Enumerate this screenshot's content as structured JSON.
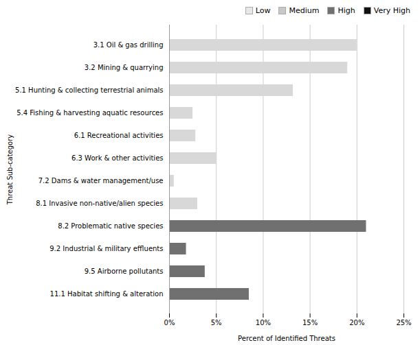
{
  "chart_data": {
    "type": "bar",
    "orientation": "horizontal",
    "categories": [
      "3.1 Oil & gas drilling",
      "3.2 Mining & quarrying",
      "5.1 Hunting & collecting terrestrial animals",
      "5.4 Fishing & harvesting aquatic resources",
      "6.1 Recreational activities",
      "6.3 Work & other activities",
      "7.2 Dams & water management/use",
      "8.1 Invasive non-native/alien species",
      "8.2 Problematic native species",
      "9.2 Industrial & military effluents",
      "9.5 Airborne pollutants",
      "11.1 Habitat shifting & alteration"
    ],
    "values": [
      20.0,
      19.0,
      13.2,
      2.5,
      2.8,
      5.0,
      0.5,
      3.0,
      21.0,
      1.8,
      3.8,
      8.5
    ],
    "colors": [
      "#d8d8d8",
      "#d8d8d8",
      "#d8d8d8",
      "#d8d8d8",
      "#d8d8d8",
      "#d8d8d8",
      "#d8d8d8",
      "#d8d8d8",
      "#707070",
      "#707070",
      "#707070",
      "#707070"
    ],
    "xlabel": "Percent of Identified Threats",
    "ylabel": "Threat Sub-category",
    "xlim": [
      0,
      25
    ],
    "xticks": [
      {
        "value": 0,
        "label": "0%"
      },
      {
        "value": 5,
        "label": "5%"
      },
      {
        "value": 10,
        "label": "10%"
      },
      {
        "value": 15,
        "label": "15%"
      },
      {
        "value": 20,
        "label": "20%"
      },
      {
        "value": 25,
        "label": "25%"
      }
    ],
    "grid": true,
    "legend": "upper right",
    "legend_entries": [
      {
        "name": "Low",
        "color": "#e8e8e8"
      },
      {
        "name": "Medium",
        "color": "#c8c8c8"
      },
      {
        "name": "High",
        "color": "#707070"
      },
      {
        "name": "Very High",
        "color": "#111111"
      }
    ]
  }
}
